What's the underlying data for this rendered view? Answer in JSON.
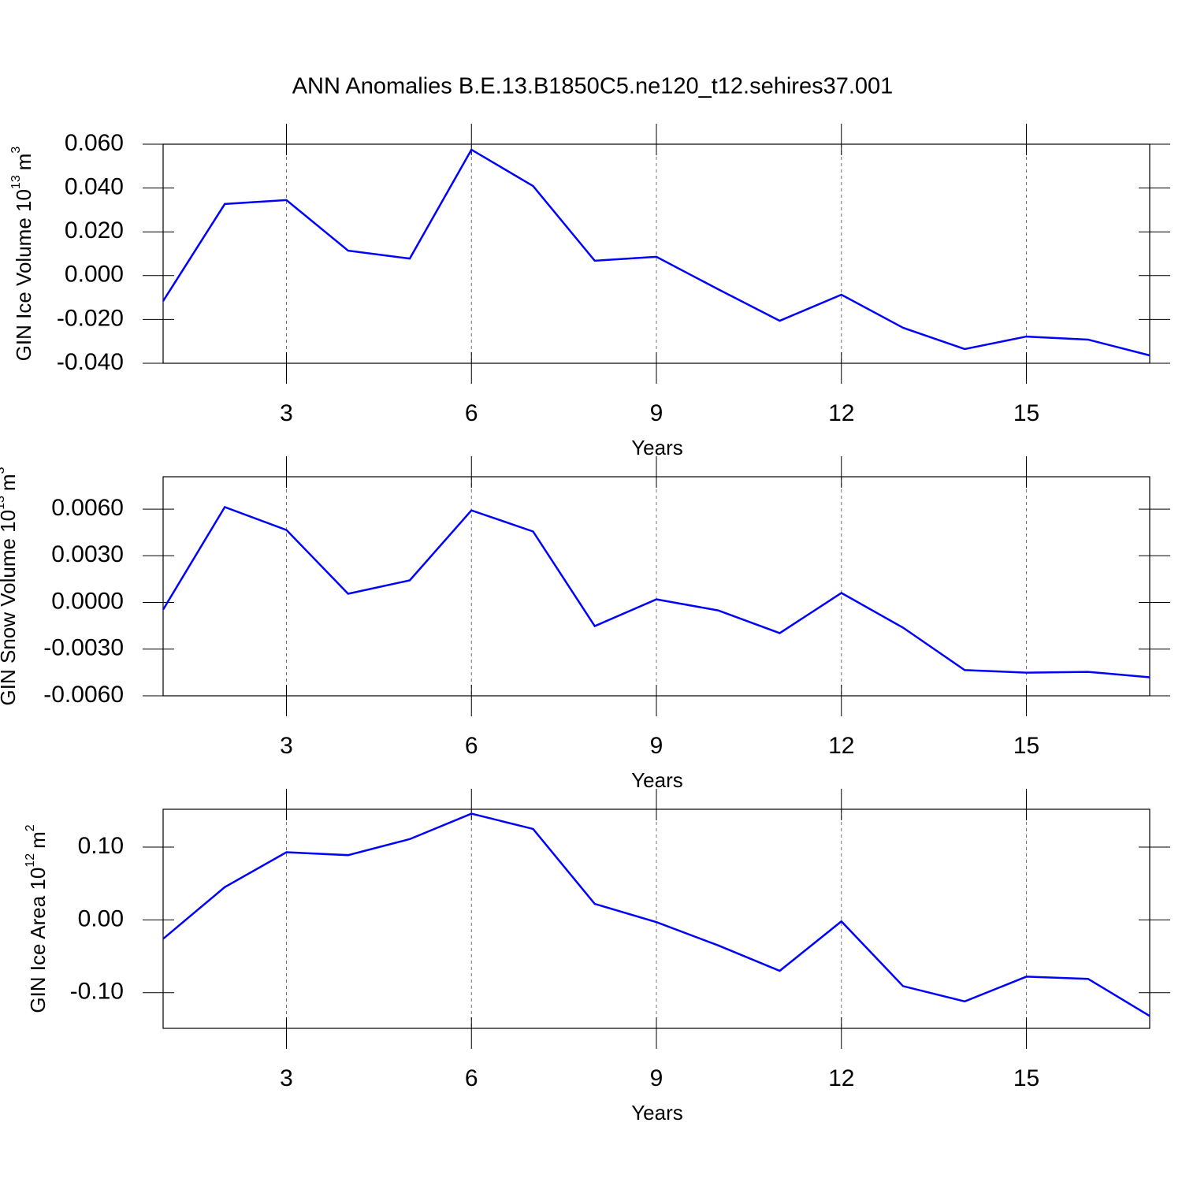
{
  "title": "ANN Anomalies B.E.13.B1850C5.ne120_t12.sehires37.001",
  "chart_data": [
    {
      "type": "line",
      "ylabel": {
        "text": "GIN Ice Volume 10",
        "exponent": "13",
        "unit": "m",
        "unit_exponent": "3"
      },
      "xlabel": "Years",
      "x": [
        1,
        2,
        3,
        4,
        5,
        6,
        7,
        8,
        9,
        10,
        11,
        12,
        13,
        14,
        15,
        16,
        17
      ],
      "series": [
        {
          "color": "#0000ff",
          "values": [
            -0.0116,
            0.0327,
            0.0345,
            0.0114,
            0.0078,
            0.0575,
            0.0409,
            0.0068,
            0.0086,
            -0.0062,
            -0.0206,
            -0.0087,
            -0.0238,
            -0.0335,
            -0.0278,
            -0.0292,
            -0.0364
          ]
        }
      ],
      "xlim": [
        1,
        17
      ],
      "xticks": [
        3,
        6,
        9,
        12,
        15
      ],
      "ylim": [
        -0.04,
        0.06
      ],
      "yticks": [
        {
          "value": -0.04,
          "label": "-0.040"
        },
        {
          "value": -0.02,
          "label": "-0.020"
        },
        {
          "value": 0,
          "label": "0.000"
        },
        {
          "value": 0.02,
          "label": "0.020"
        },
        {
          "value": 0.04,
          "label": "0.040"
        },
        {
          "value": 0.06,
          "label": "0.060"
        }
      ],
      "grid": true
    },
    {
      "type": "line",
      "ylabel": {
        "text": "GIN Snow Volume 10",
        "exponent": "13",
        "unit": "m",
        "unit_exponent": "3"
      },
      "xlabel": "Years",
      "x": [
        1,
        2,
        3,
        4,
        5,
        6,
        7,
        8,
        9,
        10,
        11,
        12,
        13,
        14,
        15,
        16,
        17
      ],
      "series": [
        {
          "color": "#0000ff",
          "values": [
            -0.00046,
            0.00613,
            0.00466,
            0.00056,
            0.00142,
            0.00592,
            0.00456,
            -0.00152,
            0.0002,
            -0.00051,
            -0.00197,
            0.00061,
            -0.00162,
            -0.00435,
            -0.00451,
            -0.00446,
            -0.00481
          ]
        }
      ],
      "xlim": [
        1,
        17
      ],
      "xticks": [
        3,
        6,
        9,
        12,
        15
      ],
      "ylim": [
        -0.006,
        0.00808
      ],
      "yticks": [
        {
          "value": -0.006,
          "label": "-0.0060"
        },
        {
          "value": -0.003,
          "label": "-0.0030"
        },
        {
          "value": 0,
          "label": "0.0000"
        },
        {
          "value": 0.003,
          "label": "0.0030"
        },
        {
          "value": 0.006,
          "label": "0.0060"
        }
      ],
      "grid": true
    },
    {
      "type": "line",
      "ylabel": {
        "text": "GIN Ice Area 10",
        "exponent": "12",
        "unit": "m",
        "unit_exponent": "2"
      },
      "xlabel": "Years",
      "x": [
        1,
        2,
        3,
        4,
        5,
        6,
        7,
        8,
        9,
        10,
        11,
        12,
        13,
        14,
        15,
        16,
        17
      ],
      "series": [
        {
          "color": "#0000ff",
          "values": [
            -0.026,
            0.045,
            0.093,
            0.089,
            0.111,
            0.146,
            0.125,
            0.022,
            -0.003,
            -0.035,
            -0.07,
            -0.002,
            -0.091,
            -0.112,
            -0.078,
            -0.081,
            -0.132
          ]
        }
      ],
      "xlim": [
        1,
        17
      ],
      "xticks": [
        3,
        6,
        9,
        12,
        15
      ],
      "ylim": [
        -0.149,
        0.152
      ],
      "yticks": [
        {
          "value": -0.1,
          "label": "-0.10"
        },
        {
          "value": 0,
          "label": "0.00"
        },
        {
          "value": 0.1,
          "label": "0.10"
        }
      ],
      "grid": true
    }
  ]
}
